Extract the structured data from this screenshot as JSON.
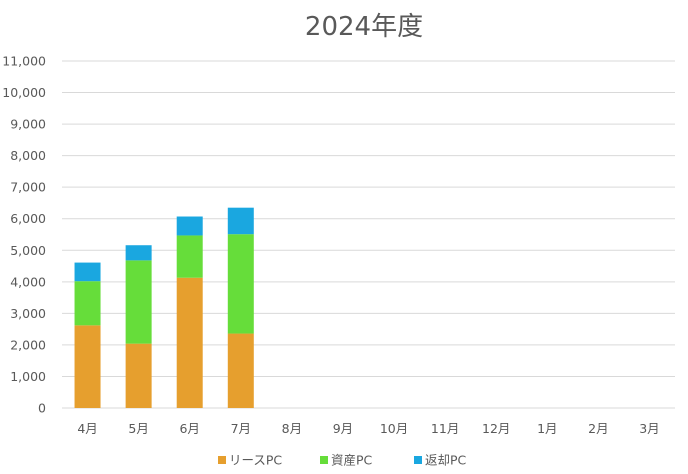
{
  "chart_data": {
    "type": "bar",
    "stacked": true,
    "title": "2024年度",
    "xlabel": "",
    "ylabel": "",
    "categories": [
      "4月",
      "5月",
      "6月",
      "7月",
      "8月",
      "9月",
      "10月",
      "11月",
      "12月",
      "1月",
      "2月",
      "3月"
    ],
    "series": [
      {
        "name": "リースPC",
        "color": "#E69F2E",
        "values": [
          2620,
          2040,
          4130,
          2360,
          null,
          null,
          null,
          null,
          null,
          null,
          null,
          null
        ]
      },
      {
        "name": "資産PC",
        "color": "#66DD3A",
        "values": [
          1400,
          2640,
          1340,
          3150,
          null,
          null,
          null,
          null,
          null,
          null,
          null,
          null
        ]
      },
      {
        "name": "返却PC",
        "color": "#1AA7E0",
        "values": [
          590,
          480,
          600,
          840,
          null,
          null,
          null,
          null,
          null,
          null,
          null,
          null
        ]
      }
    ],
    "ylim": [
      0,
      11000
    ],
    "y_ticks": [
      "0",
      "1,000",
      "2,000",
      "3,000",
      "4,000",
      "5,000",
      "6,000",
      "7,000",
      "8,000",
      "9,000",
      "10,000",
      "11,000"
    ],
    "grid": true,
    "legend_position": "bottom"
  }
}
